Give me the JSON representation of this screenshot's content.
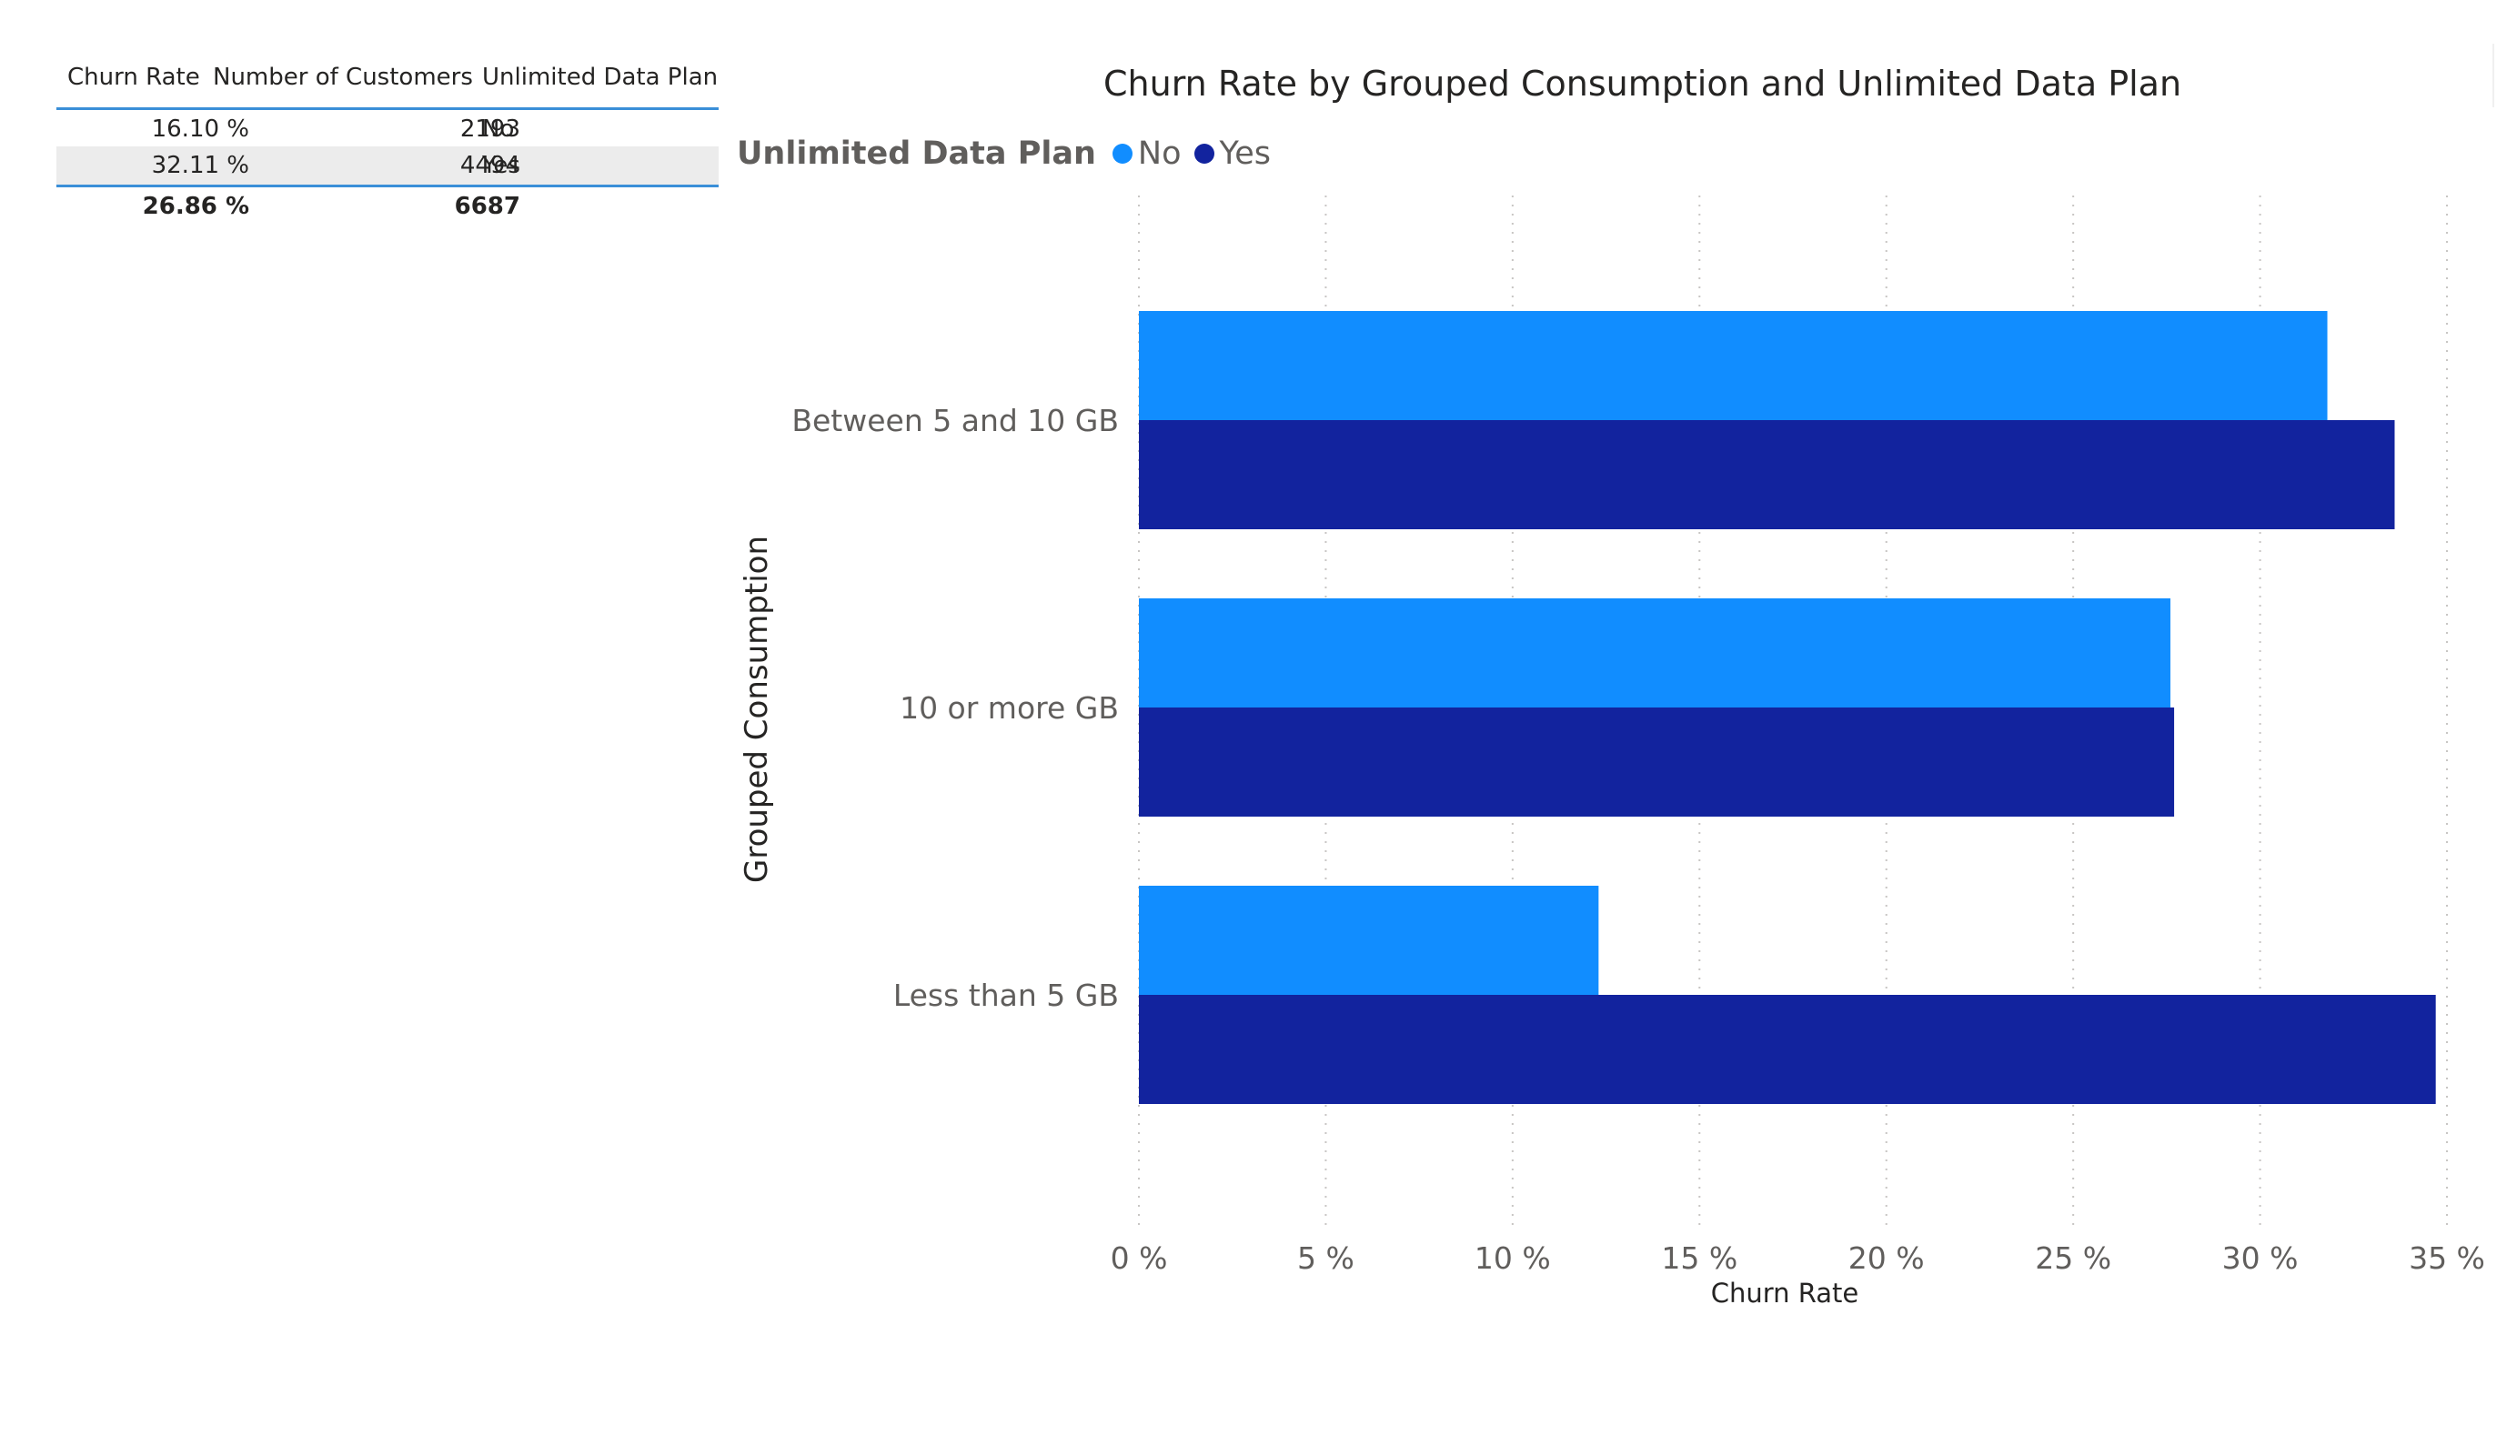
{
  "table": {
    "headers": [
      "Churn Rate",
      "Number of Customers",
      "Unlimited Data Plan"
    ],
    "rows": [
      {
        "churn_rate": "16.10 %",
        "customers": "2193",
        "plan": "No"
      },
      {
        "churn_rate": "32.11 %",
        "customers": "4494",
        "plan": "Yes"
      }
    ],
    "total": {
      "churn_rate": "26.86 %",
      "customers": "6687"
    }
  },
  "chart_data": {
    "type": "bar",
    "orientation": "horizontal",
    "title": "Churn Rate by Grouped Consumption and Unlimited Data Plan",
    "xlabel": "Churn Rate",
    "ylabel": "Grouped Consumption",
    "legend_title": "Unlimited Data Plan",
    "legend_position": "top-left",
    "categories": [
      "Between 5 and 10 GB",
      "10 or more GB",
      "Less than 5 GB"
    ],
    "series": [
      {
        "name": "No",
        "color": "#118dff",
        "values": [
          31.8,
          27.6,
          12.3
        ]
      },
      {
        "name": "Yes",
        "color": "#12239e",
        "values": [
          33.6,
          27.7,
          34.7
        ]
      }
    ],
    "xlim": [
      0,
      35
    ],
    "xticks": [
      0,
      5,
      10,
      15,
      20,
      25,
      30,
      35
    ],
    "xtick_labels": [
      "0 %",
      "5 %",
      "10 %",
      "15 %",
      "20 %",
      "25 %",
      "30 %",
      "35 %"
    ],
    "grid": "vertical-dotted"
  }
}
